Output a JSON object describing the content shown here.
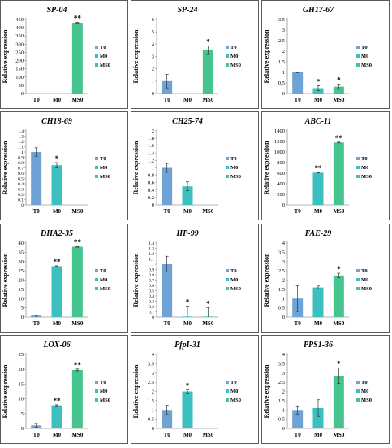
{
  "colors": {
    "T0": "#6fa3d6",
    "M0": "#3bbfbf",
    "MS0": "#45c48d",
    "frame": "#5a5a5a",
    "axis": "#9a9a9a",
    "text": "#000000"
  },
  "ylabel": "Relative expression",
  "legend_labels": [
    "T0",
    "M0",
    "MS0"
  ],
  "chart_data": [
    {
      "type": "bar",
      "title": "SP-04",
      "categories": [
        "T0",
        "M0",
        "MS0"
      ],
      "values": [
        0,
        0,
        430
      ],
      "errors": [
        0,
        0,
        2
      ],
      "significance": [
        "",
        "",
        "**"
      ],
      "ylim": [
        0,
        450
      ],
      "yticks": [
        0,
        50,
        100,
        150,
        200,
        250,
        300,
        350,
        400,
        450
      ],
      "ylabel": "Relative expression"
    },
    {
      "type": "bar",
      "title": "SP-24",
      "categories": [
        "T0",
        "M0",
        "MS0"
      ],
      "values": [
        1.0,
        0,
        3.5
      ],
      "errors": [
        0.55,
        0,
        0.35
      ],
      "significance": [
        "",
        "",
        "*"
      ],
      "ylim": [
        0,
        6
      ],
      "yticks": [
        0,
        1,
        2,
        3,
        4,
        5,
        6
      ],
      "ylabel": "Relative expression"
    },
    {
      "type": "bar",
      "title": "GH17-67",
      "categories": [
        "T0",
        "M0",
        "MS0"
      ],
      "values": [
        1.0,
        0.25,
        0.32
      ],
      "errors": [
        0.02,
        0.12,
        0.12
      ],
      "significance": [
        "",
        "*",
        "*"
      ],
      "ylim": [
        0,
        3.5
      ],
      "yticks": [
        0,
        0.5,
        1,
        1.5,
        2,
        2.5,
        3,
        3.5
      ],
      "ylabel": "Relative expression"
    },
    {
      "type": "bar",
      "title": "CH18-69",
      "categories": [
        "T0",
        "M0",
        "MS0"
      ],
      "values": [
        1.0,
        0.75,
        0
      ],
      "errors": [
        0.08,
        0.05,
        0
      ],
      "significance": [
        "",
        "*",
        ""
      ],
      "ylim": [
        0,
        1.4
      ],
      "yticks": [
        0,
        0.1,
        0.2,
        0.3,
        0.4,
        0.5,
        0.6,
        0.7,
        0.8,
        0.9,
        1,
        1.1,
        1.2,
        1.3,
        1.4
      ],
      "ylabel": "Relative expression"
    },
    {
      "type": "bar",
      "title": "CH25-74",
      "categories": [
        "T0",
        "M0",
        "MS0"
      ],
      "values": [
        1.0,
        0.5,
        0
      ],
      "errors": [
        0.12,
        0.12,
        0
      ],
      "significance": [
        "",
        "",
        ""
      ],
      "ylim": [
        0,
        2
      ],
      "yticks": [
        0,
        0.2,
        0.4,
        0.6,
        0.8,
        1,
        1.2,
        1.4,
        1.6,
        1.8,
        2
      ],
      "ylabel": "Relative expression"
    },
    {
      "type": "bar",
      "title": "ABC-11",
      "categories": [
        "T0",
        "M0",
        "MS0"
      ],
      "values": [
        0,
        610,
        1180
      ],
      "errors": [
        0,
        5,
        8
      ],
      "significance": [
        "",
        "**",
        "**"
      ],
      "ylim": [
        0,
        1400
      ],
      "yticks": [
        0,
        200,
        400,
        600,
        800,
        1000,
        1200,
        1400
      ],
      "ylabel": "Relative expression"
    },
    {
      "type": "bar",
      "title": "DHA2-35",
      "categories": [
        "T0",
        "M0",
        "MS0"
      ],
      "values": [
        0.8,
        27.5,
        38
      ],
      "errors": [
        0.3,
        0.2,
        0.2
      ],
      "significance": [
        "",
        "**",
        "**"
      ],
      "ylim": [
        0,
        40
      ],
      "yticks": [
        0,
        5,
        10,
        15,
        20,
        25,
        30,
        35,
        40
      ],
      "ylabel": "Relative expression"
    },
    {
      "type": "bar",
      "title": "HP-99",
      "categories": [
        "T0",
        "M0",
        "MS0"
      ],
      "values": [
        1.0,
        0.01,
        0.01
      ],
      "errors": [
        0.15,
        0.2,
        0.17
      ],
      "significance": [
        "",
        "*",
        "*"
      ],
      "ylim": [
        0,
        1.4
      ],
      "yticks": [
        0,
        0.1,
        0.2,
        0.3,
        0.4,
        0.5,
        0.6,
        0.7,
        0.8,
        0.9,
        1,
        1.1,
        1.2,
        1.3,
        1.4
      ],
      "ylabel": "Relative expression"
    },
    {
      "type": "bar",
      "title": "FAE-29",
      "categories": [
        "T0",
        "M0",
        "MS0"
      ],
      "values": [
        1.0,
        1.6,
        2.25
      ],
      "errors": [
        0.7,
        0.08,
        0.12
      ],
      "significance": [
        "",
        "",
        "*"
      ],
      "ylim": [
        0,
        4
      ],
      "yticks": [
        0,
        0.5,
        1,
        1.5,
        2,
        2.5,
        3,
        3.5,
        4
      ],
      "ylabel": "Relative expression"
    },
    {
      "type": "bar",
      "title": "LOX-06",
      "categories": [
        "T0",
        "M0",
        "MS0"
      ],
      "values": [
        1.0,
        7.8,
        19.8
      ],
      "errors": [
        0.7,
        0.2,
        0.3
      ],
      "significance": [
        "",
        "**",
        "**"
      ],
      "ylim": [
        0,
        25
      ],
      "yticks": [
        0,
        5,
        10,
        15,
        20,
        25
      ],
      "ylabel": "Relative expression"
    },
    {
      "type": "bar",
      "title": "PfpI-31",
      "categories": [
        "T0",
        "M0",
        "MS0"
      ],
      "values": [
        1.0,
        2.0,
        0
      ],
      "errors": [
        0.25,
        0.08,
        0
      ],
      "significance": [
        "",
        "*",
        ""
      ],
      "ylim": [
        0,
        4
      ],
      "yticks": [
        0,
        0.5,
        1,
        1.5,
        2,
        2.5,
        3,
        3.5,
        4
      ],
      "ylabel": "Relative expression"
    },
    {
      "type": "bar",
      "title": "PPS1-36",
      "categories": [
        "T0",
        "M0",
        "MS0"
      ],
      "values": [
        1.0,
        1.1,
        2.85
      ],
      "errors": [
        0.22,
        0.45,
        0.42
      ],
      "significance": [
        "",
        "",
        "*"
      ],
      "ylim": [
        0,
        4
      ],
      "yticks": [
        0,
        0.5,
        1,
        1.5,
        2,
        2.5,
        3,
        3.5,
        4
      ],
      "ylabel": "Relative expression"
    }
  ]
}
